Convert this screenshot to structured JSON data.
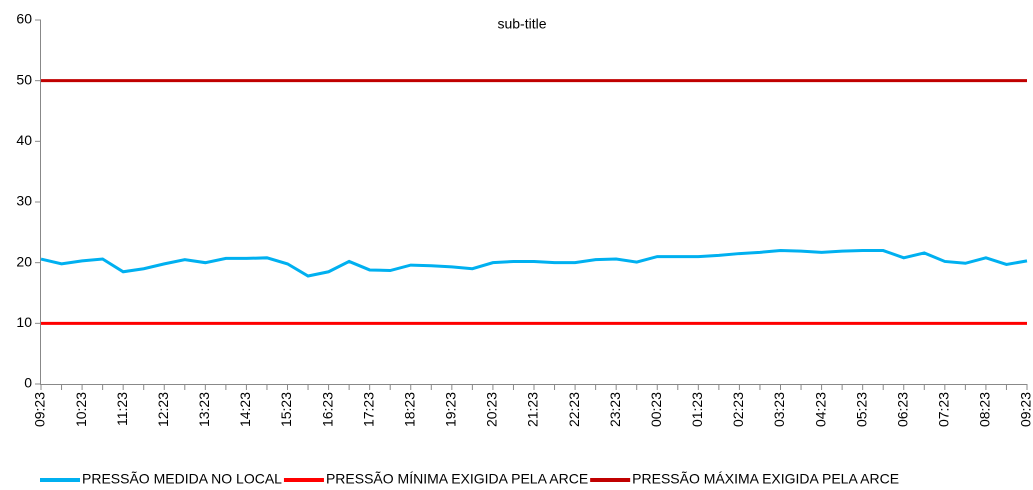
{
  "chart_data": {
    "type": "line",
    "subtitle": "sub-title",
    "categories": [
      "09:23",
      null,
      "10:23",
      null,
      "11:23",
      null,
      "12:23",
      null,
      "13:23",
      null,
      "14:23",
      null,
      "15:23",
      null,
      "16:23",
      null,
      "17:23",
      null,
      "18:23",
      null,
      "19:23",
      null,
      "20:23",
      null,
      "21:23",
      null,
      "22:23",
      null,
      "23:23",
      null,
      "00:23",
      null,
      "01:23",
      null,
      "02:23",
      null,
      "03:23",
      null,
      "04:23",
      null,
      "05:23",
      null,
      "06:23",
      null,
      "07:23",
      null,
      "08:23",
      null,
      "09:23"
    ],
    "series": [
      {
        "name": "PRESSÃO MEDIDA NO LOCAL",
        "color": "#00b0f0",
        "values": [
          20.6,
          19.8,
          20.3,
          20.6,
          18.5,
          19.0,
          19.8,
          20.5,
          20.0,
          20.7,
          20.7,
          20.8,
          19.8,
          17.8,
          18.5,
          20.2,
          18.8,
          18.7,
          19.6,
          19.5,
          19.3,
          19.0,
          20.0,
          20.2,
          20.2,
          20.0,
          20.0,
          20.5,
          20.6,
          20.1,
          21.0,
          21.0,
          21.0,
          21.2,
          21.5,
          21.7,
          22.0,
          21.9,
          21.7,
          21.9,
          22.0,
          22.0,
          20.8,
          21.6,
          20.2,
          19.9,
          20.8,
          19.7,
          20.3
        ]
      },
      {
        "name": "PRESSÃO MÍNIMA EXIGIDA PELA ARCE",
        "color": "#ff0000",
        "values": [
          10,
          10,
          10,
          10,
          10,
          10,
          10,
          10,
          10,
          10,
          10,
          10,
          10,
          10,
          10,
          10,
          10,
          10,
          10,
          10,
          10,
          10,
          10,
          10,
          10,
          10,
          10,
          10,
          10,
          10,
          10,
          10,
          10,
          10,
          10,
          10,
          10,
          10,
          10,
          10,
          10,
          10,
          10,
          10,
          10,
          10,
          10,
          10,
          10
        ]
      },
      {
        "name": "PRESSÃO MÁXIMA EXIGIDA PELA ARCE",
        "color": "#c00000",
        "values": [
          50,
          50,
          50,
          50,
          50,
          50,
          50,
          50,
          50,
          50,
          50,
          50,
          50,
          50,
          50,
          50,
          50,
          50,
          50,
          50,
          50,
          50,
          50,
          50,
          50,
          50,
          50,
          50,
          50,
          50,
          50,
          50,
          50,
          50,
          50,
          50,
          50,
          50,
          50,
          50,
          50,
          50,
          50,
          50,
          50,
          50,
          50,
          50,
          50
        ]
      }
    ],
    "ylim": [
      0,
      60
    ],
    "yticks": [
      0,
      10,
      20,
      30,
      40,
      50,
      60
    ],
    "legend": "bottom"
  }
}
